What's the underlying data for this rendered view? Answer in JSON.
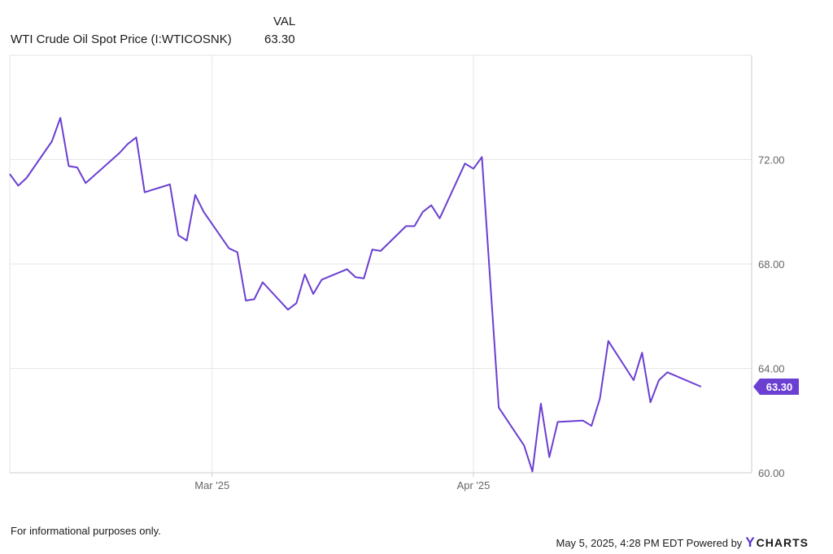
{
  "legend": {
    "header": "VAL",
    "series_name": "WTI Crude Oil Spot Price (I:WTICOSNK)",
    "series_value": "63.30"
  },
  "footer": {
    "disclaimer": "For informational purposes only.",
    "timestamp": "May 5, 2025, 4:28 PM EDT Powered by",
    "brand": "CHARTS"
  },
  "colors": {
    "line": "#6a3fd1",
    "grid": "#e6e6e6",
    "axis": "#cccccc"
  },
  "chart_data": {
    "type": "line",
    "x_unit": "days since Feb 5 2025",
    "xlim": [
      0,
      88
    ],
    "ylim": [
      60,
      76
    ],
    "y_ticks": [
      60,
      64,
      68,
      72
    ],
    "y_tick_labels": [
      "60.00",
      "64.00",
      "68.00",
      "72.00"
    ],
    "x_ticks": [
      {
        "x": 24,
        "label": "Mar '25"
      },
      {
        "x": 55,
        "label": "Apr '25"
      }
    ],
    "series": [
      {
        "name": "WTI Crude Oil Spot Price (I:WTICOSNK)",
        "last_label": "63.30",
        "points": [
          [
            0,
            71.45
          ],
          [
            1,
            71.0
          ],
          [
            2,
            71.3
          ],
          [
            5,
            72.7
          ],
          [
            6,
            73.6
          ],
          [
            7,
            71.75
          ],
          [
            8,
            71.7
          ],
          [
            9,
            71.1
          ],
          [
            13,
            72.25
          ],
          [
            14,
            72.6
          ],
          [
            15,
            72.85
          ],
          [
            16,
            70.75
          ],
          [
            19,
            71.05
          ],
          [
            20,
            69.1
          ],
          [
            21,
            68.9
          ],
          [
            22,
            70.65
          ],
          [
            23,
            70.0
          ],
          [
            26,
            68.6
          ],
          [
            27,
            68.45
          ],
          [
            28,
            66.6
          ],
          [
            29,
            66.65
          ],
          [
            30,
            67.3
          ],
          [
            33,
            66.25
          ],
          [
            34,
            66.5
          ],
          [
            35,
            67.6
          ],
          [
            36,
            66.85
          ],
          [
            37,
            67.4
          ],
          [
            40,
            67.8
          ],
          [
            41,
            67.5
          ],
          [
            42,
            67.45
          ],
          [
            43,
            68.55
          ],
          [
            44,
            68.5
          ],
          [
            47,
            69.45
          ],
          [
            48,
            69.45
          ],
          [
            49,
            70.0
          ],
          [
            50,
            70.25
          ],
          [
            51,
            69.75
          ],
          [
            54,
            71.85
          ],
          [
            55,
            71.65
          ],
          [
            56,
            72.1
          ],
          [
            58,
            62.5
          ],
          [
            61,
            61.05
          ],
          [
            62,
            60.05
          ],
          [
            63,
            62.65
          ],
          [
            64,
            60.6
          ],
          [
            65,
            61.95
          ],
          [
            68,
            62.0
          ],
          [
            69,
            61.8
          ],
          [
            70,
            62.85
          ],
          [
            71,
            65.05
          ],
          [
            74,
            63.55
          ],
          [
            75,
            64.6
          ],
          [
            76,
            62.7
          ],
          [
            77,
            63.55
          ],
          [
            78,
            63.85
          ],
          [
            82,
            63.3
          ]
        ]
      }
    ]
  }
}
